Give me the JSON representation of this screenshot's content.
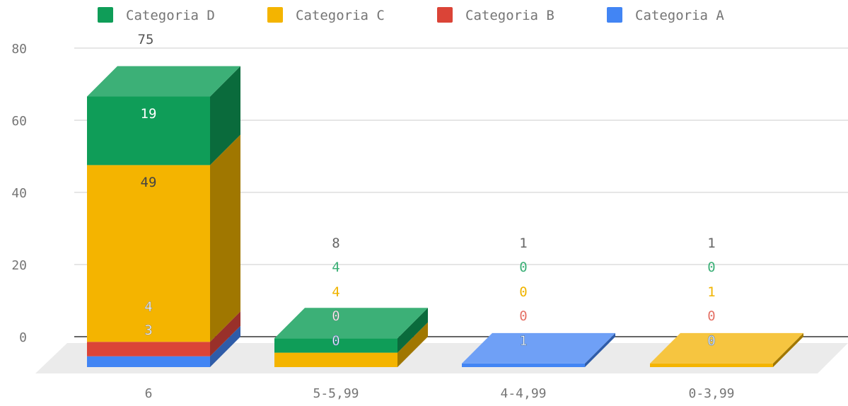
{
  "chart_data": {
    "type": "bar",
    "stacked": true,
    "three_d": true,
    "legend_position": "top",
    "grid": true,
    "ylim": [
      0,
      80
    ],
    "yticks": [
      "0",
      "20",
      "40",
      "60",
      "80"
    ],
    "categories": [
      "6",
      "5-5,99",
      "4-4,99",
      "0-3,99"
    ],
    "series": [
      {
        "name": "Categoria A",
        "values": [
          3,
          0,
          1,
          0
        ],
        "labels": [
          "3",
          "0",
          "1",
          "0"
        ]
      },
      {
        "name": "Categoria B",
        "values": [
          4,
          0,
          0,
          0
        ],
        "labels": [
          "4",
          "0",
          "0",
          "0"
        ]
      },
      {
        "name": "Categoria C",
        "values": [
          49,
          4,
          0,
          1
        ],
        "labels": [
          "49",
          "4",
          "0",
          "1"
        ]
      },
      {
        "name": "Categoria D",
        "values": [
          19,
          4,
          0,
          0
        ],
        "labels": [
          "19",
          "4",
          "0",
          "0"
        ]
      }
    ],
    "totals": [
      "75",
      "8",
      "1",
      "1"
    ]
  },
  "legend_order": [
    "Categoria D",
    "Categoria C",
    "Categoria B",
    "Categoria A"
  ],
  "colors": {
    "Categoria A": {
      "front": "#4285f4",
      "side": "#2f5ca8",
      "top": "#6fa0f6"
    },
    "Categoria B": {
      "front": "#db4437",
      "side": "#99302a",
      "top": "#e4685e"
    },
    "Categoria C": {
      "front": "#f4b400",
      "side": "#a07700",
      "top": "#f6c540"
    },
    "Categoria D": {
      "front": "#0f9d58",
      "side": "#0a6b3c",
      "top": "#3cb077"
    },
    "text": "#757575",
    "grid": "#cccccc",
    "baseline": "#333333",
    "floor": "#ebebeb"
  }
}
